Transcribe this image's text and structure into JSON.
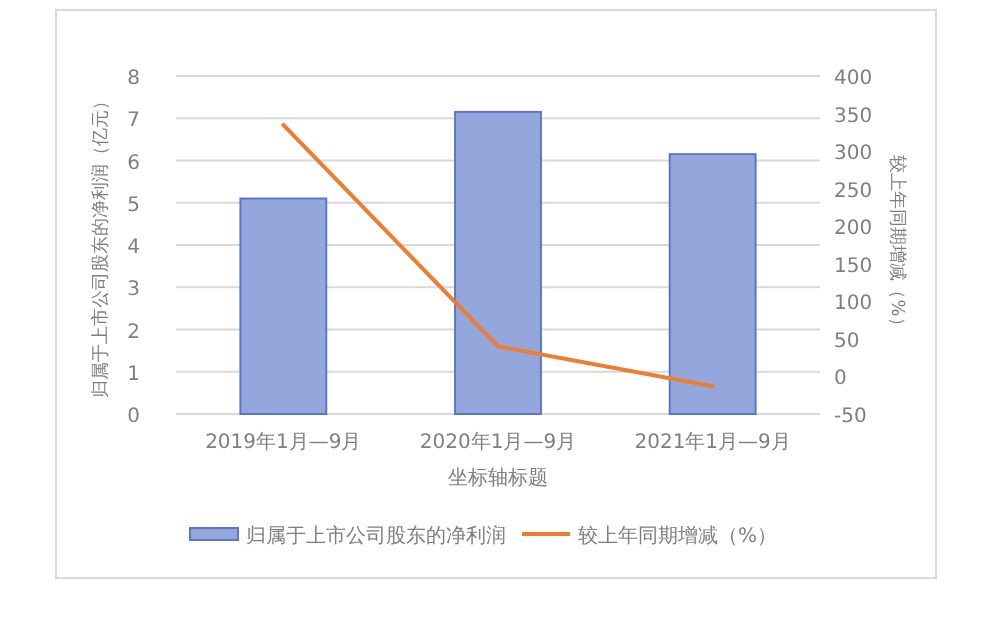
{
  "chart_data": {
    "type": "bar",
    "categories": [
      "2019年1月—9月",
      "2020年1月—9月",
      "2021年1月—9月"
    ],
    "xlabel": "坐标轴标题",
    "ylabel": "归属于上市公司股东的净利润（亿元）",
    "y2label": "较上年同期增减（%）",
    "series": [
      {
        "name": "归属于上市公司股东的净利润",
        "color": "#93a7dd",
        "values": [
          5.1,
          7.15,
          6.15
        ]
      },
      {
        "name": "较上年同期增减（%）",
        "type": "line",
        "color": "#ed7d31",
        "axis": "y2",
        "values": [
          335,
          40,
          -13
        ]
      }
    ],
    "ylim": [
      0,
      8
    ],
    "yticks": [
      0,
      1,
      2,
      3,
      4,
      5,
      6,
      7,
      8
    ],
    "y2lim": [
      -50,
      400
    ],
    "y2ticks": [
      -50,
      0,
      50,
      100,
      150,
      200,
      250,
      300,
      350,
      400
    ],
    "grid": "y",
    "legend": "bottom"
  }
}
